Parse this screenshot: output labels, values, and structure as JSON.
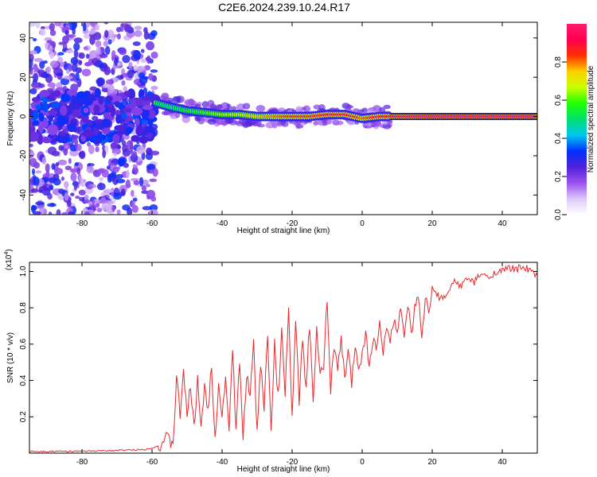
{
  "title": "C2E6.2024.239.10.24.R17",
  "chart_data": [
    {
      "type": "heatmap",
      "title": "C2E6.2024.239.10.24.R17",
      "xlabel": "Height of straight line (km)",
      "ylabel": "Frequency (Hz)",
      "xlim": [
        -95,
        50
      ],
      "ylim": [
        -50,
        48
      ],
      "x_ticks": [
        -80,
        -60,
        -40,
        -20,
        0,
        20,
        40
      ],
      "y_ticks": [
        -40,
        -20,
        0,
        20,
        40
      ],
      "x_tick_labels": [
        "-80",
        "-60",
        "-40",
        "-20",
        "0",
        "20",
        "40"
      ],
      "y_tick_labels": [
        "-40",
        "-20",
        "0",
        "20",
        "40"
      ],
      "colorbar": {
        "label": "Normalized spectral amplitude",
        "range": [
          0,
          1
        ],
        "ticks": [
          0.0,
          0.2,
          0.4,
          0.6,
          0.8
        ],
        "tick_labels": [
          "0.0",
          "0.2",
          "0.4",
          "0.6",
          "0.8"
        ],
        "colormap": [
          "#ffffff",
          "#dcc8f8",
          "#9b50f0",
          "#5020d8",
          "#0030ff",
          "#00c8f0",
          "#00e070",
          "#20ff00",
          "#c8ff00",
          "#ffd000",
          "#ff3000",
          "#ff0050",
          "#ff1a6e"
        ]
      },
      "peak_track": {
        "x": [
          -95,
          -85,
          -75,
          -65,
          -59,
          -55,
          -50,
          -45,
          -40,
          -35,
          -30,
          -25,
          -20,
          -15,
          -10,
          -5,
          0,
          5,
          10,
          20,
          30,
          40,
          50
        ],
        "y": [
          0,
          0,
          0,
          0,
          7,
          5,
          3,
          2,
          1,
          1,
          0,
          0,
          0,
          0,
          1,
          1,
          -1,
          0,
          0,
          0,
          0,
          0,
          0
        ],
        "amplitude": [
          0.25,
          0.3,
          0.3,
          0.3,
          0.55,
          0.5,
          0.55,
          0.6,
          0.65,
          0.7,
          0.75,
          0.8,
          0.85,
          0.85,
          0.9,
          0.9,
          0.8,
          0.9,
          0.95,
          1.0,
          1.0,
          1.0,
          1.0
        ]
      }
    },
    {
      "type": "line",
      "xlabel": "Height of straight line (km)",
      "ylabel": "SNR (10 * v/v)",
      "y_multiplier": "(x10",
      "y_multiplier_exp": "4",
      "y_multiplier_close": ")",
      "xlim": [
        -95,
        50
      ],
      "ylim": [
        0,
        1.05
      ],
      "x_ticks": [
        -80,
        -60,
        -40,
        -20,
        0,
        20,
        40
      ],
      "y_ticks": [
        0.2,
        0.4,
        0.6,
        0.8,
        1.0
      ],
      "x_tick_labels": [
        "-80",
        "-60",
        "-40",
        "-20",
        "0",
        "20",
        "40"
      ],
      "y_tick_labels": [
        "0.2",
        "0.4",
        "0.6",
        "0.8",
        "1.0"
      ],
      "color": "#e8282d",
      "series": [
        {
          "x": [
            -95,
            -80,
            -70,
            -62,
            -58,
            -56,
            -54,
            -53,
            -52,
            -51,
            -50,
            -49,
            -48,
            -47,
            -46,
            -45,
            -44,
            -43,
            -42,
            -41,
            -40,
            -39,
            -38,
            -37,
            -36,
            -35,
            -34,
            -33,
            -32,
            -31,
            -30,
            -29,
            -28,
            -27,
            -26,
            -25,
            -24,
            -23,
            -22,
            -21,
            -20,
            -19,
            -18,
            -17,
            -16,
            -15,
            -14,
            -13,
            -12,
            -11,
            -10,
            -9,
            -8,
            -7,
            -6,
            -5,
            -4,
            -3,
            -2,
            -1,
            0,
            1,
            2,
            3,
            4,
            5,
            6,
            7,
            8,
            9,
            10,
            11,
            12,
            13,
            14,
            15,
            16,
            17,
            18,
            19,
            20,
            22,
            24,
            26,
            28,
            30,
            32,
            34,
            36,
            38,
            40,
            42,
            44,
            46,
            48,
            50
          ],
          "y": [
            0.01,
            0.01,
            0.015,
            0.02,
            0.04,
            0.08,
            0.05,
            0.42,
            0.2,
            0.48,
            0.18,
            0.38,
            0.12,
            0.42,
            0.15,
            0.35,
            0.25,
            0.47,
            0.1,
            0.38,
            0.2,
            0.42,
            0.15,
            0.55,
            0.12,
            0.5,
            0.08,
            0.45,
            0.3,
            0.6,
            0.1,
            0.5,
            0.25,
            0.65,
            0.15,
            0.6,
            0.3,
            0.66,
            0.35,
            0.78,
            0.2,
            0.7,
            0.3,
            0.62,
            0.35,
            0.72,
            0.25,
            0.68,
            0.4,
            0.5,
            0.85,
            0.35,
            0.6,
            0.45,
            0.62,
            0.42,
            0.55,
            0.38,
            0.6,
            0.48,
            0.55,
            0.65,
            0.5,
            0.62,
            0.58,
            0.7,
            0.55,
            0.72,
            0.6,
            0.74,
            0.68,
            0.8,
            0.6,
            0.82,
            0.64,
            0.78,
            0.88,
            0.6,
            0.85,
            0.78,
            0.9,
            0.86,
            0.85,
            0.95,
            0.92,
            0.96,
            0.94,
            0.99,
            0.96,
            1.0,
            1.0,
            1.02,
            1.01,
            1.03,
            1.0,
            0.98
          ]
        }
      ]
    }
  ]
}
